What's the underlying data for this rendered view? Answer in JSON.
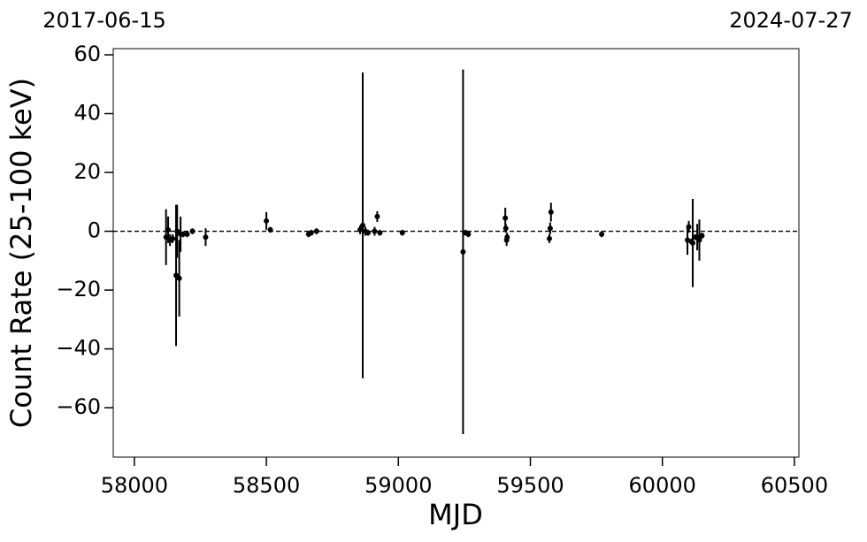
{
  "chart_data": {
    "type": "errorbar",
    "annotations": [
      "2017-06-15",
      "2024-07-27"
    ],
    "x_label": "MJD",
    "y_label": "Count Rate (25-100 keV)",
    "xlim": [
      57920,
      60517
    ],
    "ylim": [
      -76.8,
      62.1
    ],
    "xticks": [
      58000,
      58500,
      59000,
      59500,
      60000,
      60500
    ],
    "yticks": [
      {
        "value": -60,
        "label": "−60"
      },
      {
        "value": -40,
        "label": "−40"
      },
      {
        "value": -20,
        "label": "−20"
      },
      0,
      20,
      40,
      60
    ],
    "reference_line": 0,
    "color": "#000000",
    "x": [
      58120,
      58128,
      58135,
      58145,
      58158,
      58162,
      58170,
      58175,
      58185,
      58200,
      58220,
      58270,
      58500,
      58515,
      58660,
      58670,
      58690,
      58855,
      58865,
      58875,
      58885,
      58910,
      58920,
      58930,
      59015,
      59245,
      59255,
      59265,
      59405,
      59407,
      59410,
      59412,
      59572,
      59575,
      59578,
      59770,
      60095,
      60100,
      60110,
      60115,
      60125,
      60132,
      60140,
      60150
    ],
    "values": [
      -2,
      0.5,
      -3,
      -2.5,
      -15,
      0,
      -16,
      -1,
      -1,
      -1,
      0,
      -2,
      3.5,
      0.5,
      -1,
      -0.5,
      0,
      0.5,
      2,
      0,
      -0.5,
      0,
      5,
      -0.5,
      -0.5,
      -7,
      -0.5,
      -1,
      4.5,
      1,
      -3,
      -2,
      -2.5,
      1,
      6.5,
      -1,
      -3,
      1.5,
      -3.5,
      -4,
      -2,
      -2,
      -3,
      -1.5
    ],
    "errors": [
      9.5,
      4.5,
      2,
      1.5,
      24,
      9,
      13,
      6,
      1,
      1,
      1,
      3,
      3,
      1,
      1,
      1,
      1,
      1.5,
      52,
      1.5,
      1,
      1.5,
      1.8,
      1,
      1,
      62,
      1,
      1,
      3.5,
      1.5,
      2,
      1.5,
      1.5,
      2,
      3.2,
      1,
      5,
      2,
      1,
      15,
      1,
      4.5,
      7,
      1
    ]
  }
}
